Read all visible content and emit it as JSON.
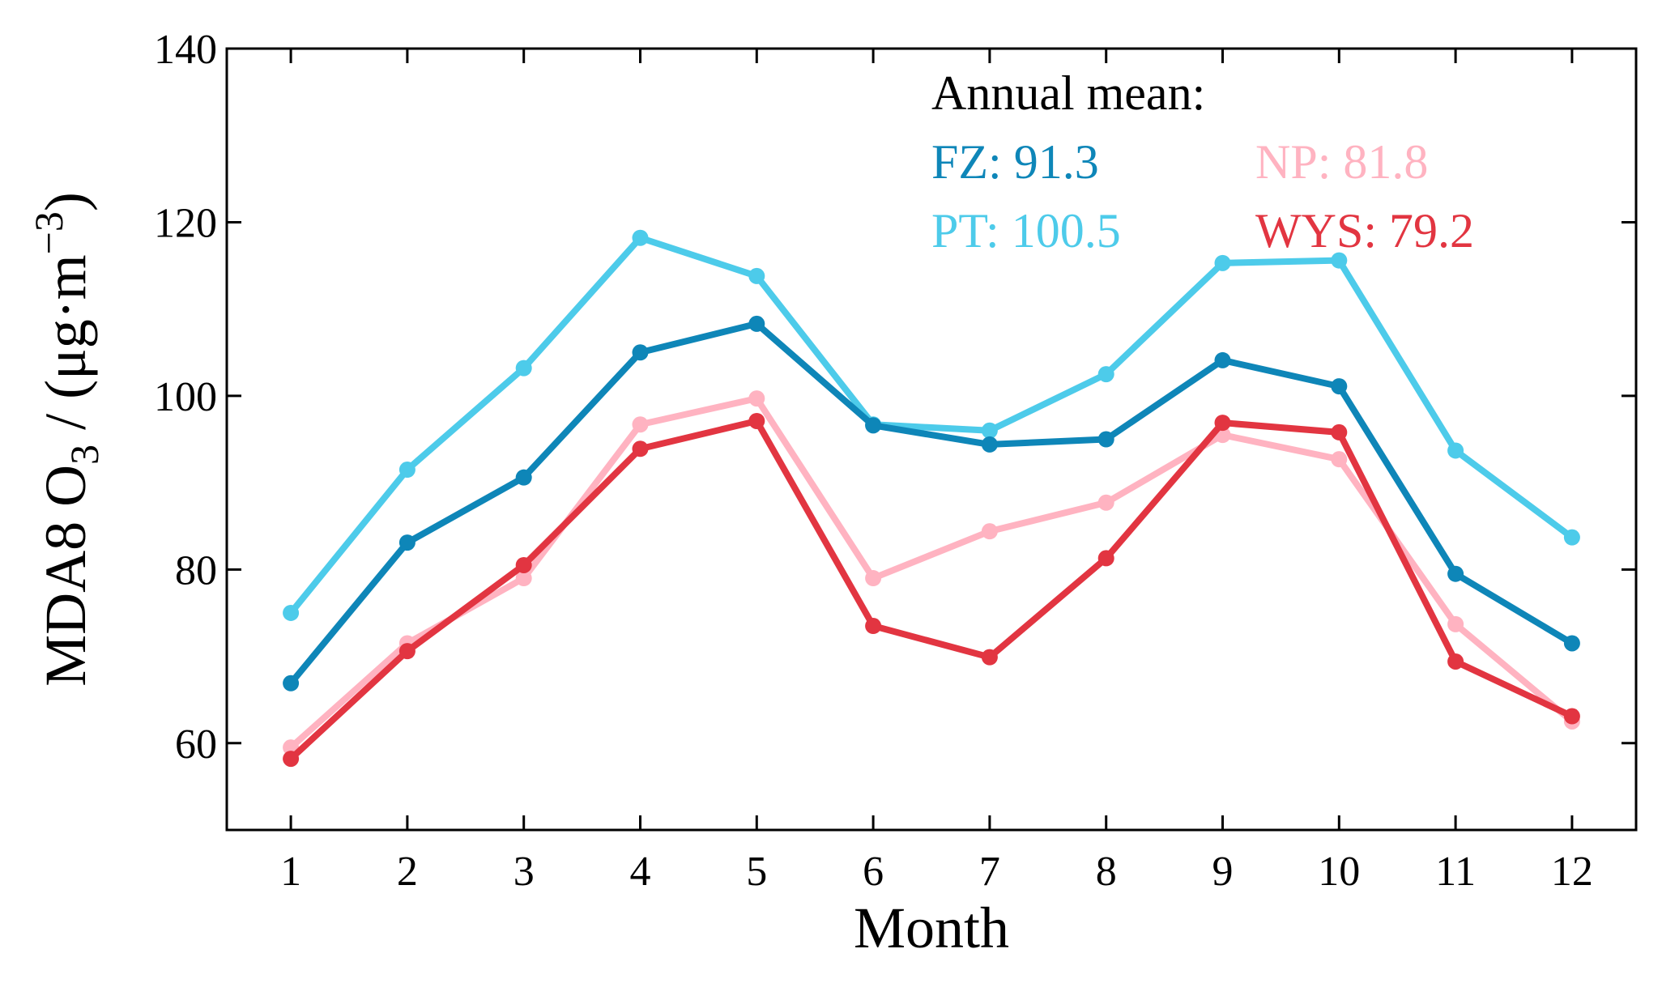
{
  "chart_data": {
    "type": "line",
    "title": "",
    "xlabel": "Month",
    "ylabel": {
      "main": "MDA8 O",
      "main_sub": "3",
      "unit_open": " / (μg·m",
      "unit_sup": "−3",
      "unit_close": ")"
    },
    "xlim": [
      0.45,
      12.55
    ],
    "ylim": [
      50,
      140
    ],
    "x": [
      1,
      2,
      3,
      4,
      5,
      6,
      7,
      8,
      9,
      10,
      11,
      12
    ],
    "x_tick_labels": [
      "1",
      "2",
      "3",
      "4",
      "5",
      "6",
      "7",
      "8",
      "9",
      "10",
      "11",
      "12"
    ],
    "y_ticks": [
      60,
      80,
      100,
      120,
      140
    ],
    "y_tick_labels": [
      "60",
      "80",
      "100",
      "120",
      "140"
    ],
    "grid": false,
    "series": [
      {
        "name": "PT",
        "color": "#4dcbea",
        "values": [
          75.0,
          91.5,
          103.2,
          118.2,
          113.8,
          96.7,
          96.0,
          102.5,
          115.3,
          115.6,
          93.7,
          83.7
        ]
      },
      {
        "name": "FZ",
        "color": "#0e86b8",
        "values": [
          66.9,
          83.1,
          90.6,
          105.0,
          108.3,
          96.6,
          94.4,
          95.0,
          104.1,
          101.1,
          79.5,
          71.5
        ]
      },
      {
        "name": "NP",
        "color": "#ffb3c1",
        "values": [
          59.5,
          71.5,
          79.0,
          96.7,
          99.7,
          79.0,
          84.4,
          87.7,
          95.5,
          92.7,
          73.7,
          62.5
        ]
      },
      {
        "name": "WYS",
        "color": "#e23541",
        "values": [
          58.2,
          70.6,
          80.5,
          93.9,
          97.1,
          73.5,
          69.9,
          81.3,
          96.9,
          95.8,
          69.4,
          63.1
        ]
      }
    ],
    "legend": {
      "placement": "top-right",
      "title": "Annual mean:",
      "title_color": "#000000",
      "entries": [
        {
          "key": "FZ",
          "text": "FZ: 91.3",
          "color": "#0e86b8"
        },
        {
          "key": "NP",
          "text": "NP: 81.8",
          "color": "#ffb3c1"
        },
        {
          "key": "PT",
          "text": "PT: 100.5",
          "color": "#4dcbea"
        },
        {
          "key": "WYS",
          "text": "WYS: 79.2",
          "color": "#e23541"
        }
      ]
    }
  }
}
